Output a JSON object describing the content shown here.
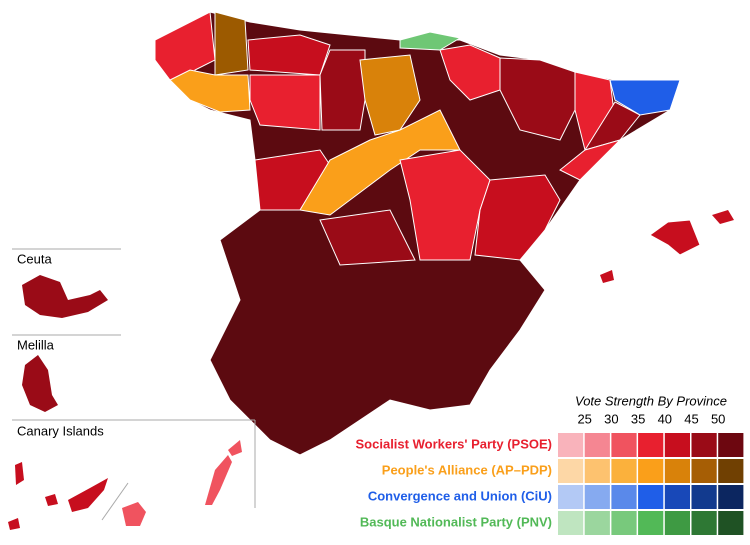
{
  "insets": [
    "Ceuta",
    "Melilla",
    "Canary Islands"
  ],
  "legend": {
    "title": "Vote Strength By Province",
    "levels": [
      25,
      30,
      35,
      40,
      45,
      50
    ],
    "parties": [
      {
        "name": "Socialist Workers' Party (PSOE)",
        "color": "#e8202f",
        "shades": [
          "#f9b3bb",
          "#f58692",
          "#f0535f",
          "#e8202f",
          "#c70e1e",
          "#9a0b17",
          "#6d0710"
        ]
      },
      {
        "name": "People's Alliance (AP–PDP)",
        "color": "#fa9f1a",
        "shades": [
          "#fdd7a6",
          "#fdc26f",
          "#fbb13c",
          "#fa9f1a",
          "#d9820a",
          "#a65e05",
          "#704002"
        ]
      },
      {
        "name": "Convergence and Union (CiU)",
        "color": "#1f5ee8",
        "shades": [
          "#b3c9f5",
          "#86aaf0",
          "#5a89ea",
          "#1f5ee8",
          "#1848b8",
          "#123a8e",
          "#0c2660"
        ]
      },
      {
        "name": "Basque Nationalist Party (PNV)",
        "color": "#52b957",
        "shades": [
          "#bfe5c0",
          "#9bd69e",
          "#78c97c",
          "#52b957",
          "#3e9a43",
          "#2e7834",
          "#1f5224"
        ]
      }
    ]
  }
}
